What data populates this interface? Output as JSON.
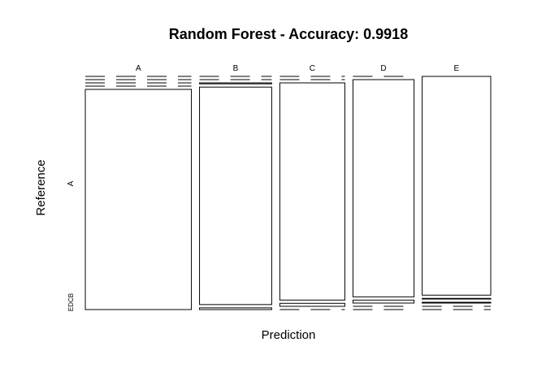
{
  "chart_data": {
    "type": "mosaic",
    "title": "Random Forest - Accuracy: 0.9918",
    "xlabel": "Prediction",
    "ylabel": "Reference",
    "prediction_labels": [
      "A",
      "B",
      "C",
      "D",
      "E"
    ],
    "reference_tick_labels": [
      "A",
      "EDCB"
    ],
    "reference_levels": [
      "A",
      "B",
      "C",
      "D",
      "E"
    ],
    "column_stack_order": [
      "E",
      "D",
      "C",
      "B",
      "A"
    ],
    "counts": {
      "A": {
        "A": 1674,
        "B": 0,
        "C": 0,
        "D": 0,
        "E": 0
      },
      "B": {
        "A": 9,
        "B": 1125,
        "C": 5,
        "D": 0,
        "E": 0
      },
      "C": {
        "A": 0,
        "B": 14,
        "C": 1012,
        "D": 0,
        "E": 0
      },
      "D": {
        "A": 0,
        "B": 0,
        "C": 13,
        "D": 951,
        "E": 0
      },
      "E": {
        "A": 0,
        "B": 0,
        "C": 4,
        "D": 3,
        "E": 1075
      }
    }
  }
}
